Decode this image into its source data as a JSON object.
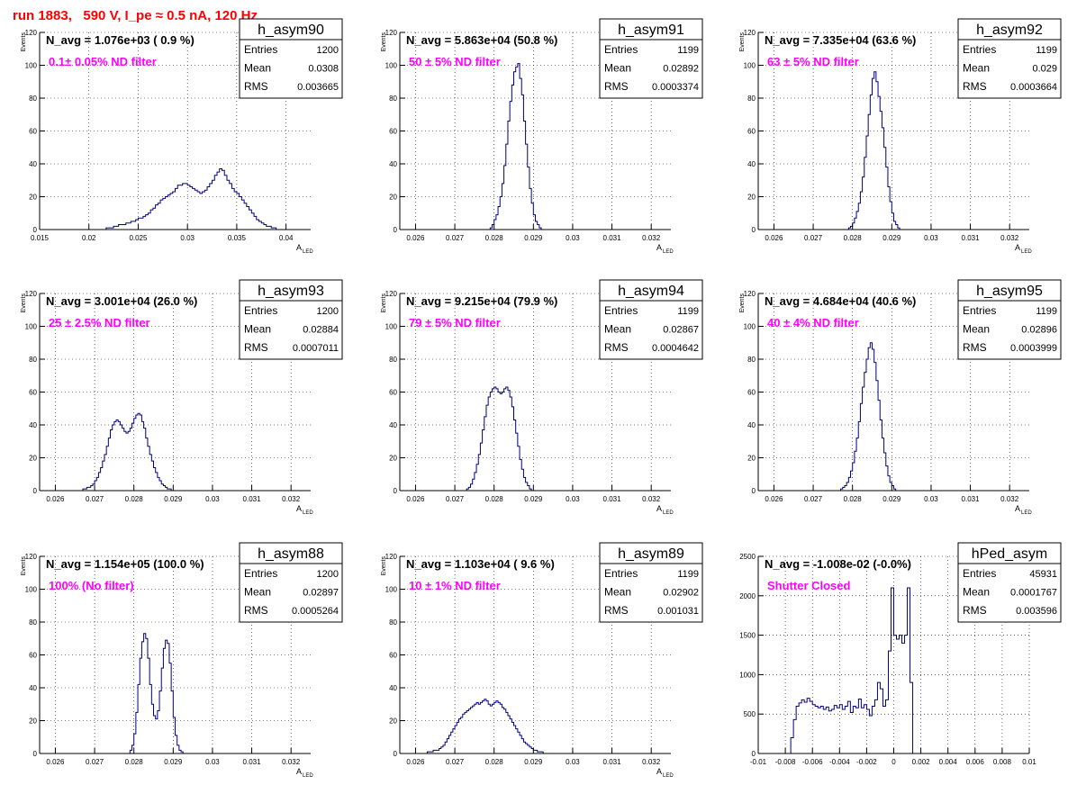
{
  "page_title": "run 1883,   590 V, I_pe ≈ 0.5 nA, 120 Hz",
  "colors": {
    "histogram": "#000080",
    "annotation": "#ff00ff",
    "title": "#ff0000",
    "grid": "#000000"
  },
  "stats_labels": {
    "entries": "Entries",
    "mean": "Mean",
    "rms": "RMS"
  },
  "chart_data": [
    {
      "type": "histogram",
      "name": "h_asym90",
      "avg_text": "N_avg = 1.076e+03 ( 0.9 %)",
      "filter_text": "0.1± 0.05% ND filter",
      "stats": {
        "entries": "1200",
        "mean": "0.0308",
        "rms": "0.003665"
      },
      "xlabel": "A",
      "xlabel_sub": "LED",
      "ylabel": "Events",
      "xlim": [
        0.015,
        0.0425
      ],
      "ylim": [
        0,
        120
      ],
      "grid": true,
      "xticks": [
        0.015,
        0.02,
        0.025,
        0.03,
        0.035,
        0.04
      ],
      "xtick_labels": [
        "0.015",
        "0.02",
        "0.025",
        "0.03",
        "0.035",
        "0.04"
      ],
      "yticks": [
        0,
        20,
        40,
        60,
        80,
        100,
        120
      ],
      "ytick_labels": [
        "0",
        "20",
        "40",
        "60",
        "80",
        "100",
        "120"
      ],
      "bin_start": 0.02,
      "bin_width": 0.00025,
      "values": [
        0,
        0,
        0,
        0,
        0,
        0,
        0,
        1,
        1,
        1,
        2,
        2,
        3,
        3,
        3,
        4,
        4,
        5,
        5,
        6,
        7,
        7,
        8,
        9,
        10,
        12,
        13,
        15,
        16,
        18,
        19,
        20,
        21,
        22,
        23,
        25,
        27,
        27,
        28,
        28,
        27,
        26,
        25,
        24,
        23,
        22,
        23,
        24,
        26,
        28,
        30,
        33,
        35,
        37,
        36,
        33,
        30,
        28,
        25,
        23,
        22,
        20,
        18,
        16,
        14,
        12,
        10,
        8,
        6,
        5,
        4,
        3,
        2,
        2,
        1,
        1,
        0,
        0,
        0,
        0,
        0,
        0
      ]
    },
    {
      "type": "histogram",
      "name": "h_asym91",
      "avg_text": "N_avg = 5.863e+04 (50.8 %)",
      "filter_text": "50 ± 5% ND filter",
      "stats": {
        "entries": "1199",
        "mean": "0.02892",
        "rms": "0.0003374"
      },
      "xlabel": "A",
      "xlabel_sub": "LED",
      "ylabel": "Events",
      "xlim": [
        0.0256,
        0.0325
      ],
      "ylim": [
        0,
        120
      ],
      "grid": true,
      "xticks": [
        0.026,
        0.027,
        0.028,
        0.029,
        0.03,
        0.031,
        0.032
      ],
      "xtick_labels": [
        "0.026",
        "0.027",
        "0.028",
        "0.029",
        "0.03",
        "0.031",
        "0.032"
      ],
      "yticks": [
        0,
        20,
        40,
        60,
        80,
        100,
        120
      ],
      "ytick_labels": [
        "0",
        "20",
        "40",
        "60",
        "80",
        "100",
        "120"
      ],
      "bin_start": 0.0279,
      "bin_width": 5e-05,
      "values": [
        1,
        3,
        6,
        9,
        14,
        20,
        28,
        39,
        52,
        66,
        78,
        88,
        96,
        99,
        101,
        92,
        82,
        66,
        52,
        38,
        25,
        16,
        9,
        5,
        3,
        1,
        0
      ]
    },
    {
      "type": "histogram",
      "name": "h_asym92",
      "avg_text": "N_avg = 7.335e+04 (63.6 %)",
      "filter_text": "63 ± 5% ND filter",
      "stats": {
        "entries": "1199",
        "mean": "0.029",
        "rms": "0.0003664"
      },
      "xlabel": "A",
      "xlabel_sub": "LED",
      "ylabel": "Events",
      "xlim": [
        0.0256,
        0.0325
      ],
      "ylim": [
        0,
        120
      ],
      "grid": true,
      "xticks": [
        0.026,
        0.027,
        0.028,
        0.029,
        0.03,
        0.031,
        0.032
      ],
      "xtick_labels": [
        "0.026",
        "0.027",
        "0.028",
        "0.029",
        "0.03",
        "0.031",
        "0.032"
      ],
      "yticks": [
        0,
        20,
        40,
        60,
        80,
        100,
        120
      ],
      "ytick_labels": [
        "0",
        "20",
        "40",
        "60",
        "80",
        "100",
        "120"
      ],
      "bin_start": 0.0279,
      "bin_width": 5e-05,
      "values": [
        1,
        2,
        4,
        7,
        11,
        16,
        23,
        32,
        44,
        57,
        70,
        82,
        92,
        96,
        90,
        81,
        72,
        62,
        50,
        38,
        26,
        17,
        10,
        5,
        3,
        1,
        0
      ]
    },
    {
      "type": "histogram",
      "name": "h_asym93",
      "avg_text": "N_avg = 3.001e+04 (26.0 %)",
      "filter_text": "25 ± 2.5% ND filter",
      "stats": {
        "entries": "1200",
        "mean": "0.02884",
        "rms": "0.0007011"
      },
      "xlabel": "A",
      "xlabel_sub": "LED",
      "ylabel": "Events",
      "xlim": [
        0.0256,
        0.0325
      ],
      "ylim": [
        0,
        120
      ],
      "grid": true,
      "xticks": [
        0.026,
        0.027,
        0.028,
        0.029,
        0.03,
        0.031,
        0.032
      ],
      "xtick_labels": [
        "0.026",
        "0.027",
        "0.028",
        "0.029",
        "0.03",
        "0.031",
        "0.032"
      ],
      "yticks": [
        0,
        20,
        40,
        60,
        80,
        100,
        120
      ],
      "ytick_labels": [
        "0",
        "20",
        "40",
        "60",
        "80",
        "100",
        "120"
      ],
      "bin_start": 0.0266,
      "bin_width": 5e-05,
      "values": [
        0,
        0,
        1,
        1,
        2,
        2,
        3,
        4,
        6,
        8,
        11,
        14,
        18,
        22,
        27,
        32,
        37,
        40,
        42,
        43,
        42,
        40,
        38,
        36,
        35,
        36,
        38,
        41,
        44,
        46,
        47,
        46,
        42,
        38,
        32,
        27,
        22,
        18,
        14,
        11,
        8,
        6,
        4,
        3,
        2,
        1,
        1,
        0
      ]
    },
    {
      "type": "histogram",
      "name": "h_asym94",
      "avg_text": "N_avg = 9.215e+04 (79.9 %)",
      "filter_text": "79 ± 5% ND filter",
      "stats": {
        "entries": "1199",
        "mean": "0.02867",
        "rms": "0.0004642"
      },
      "xlabel": "A",
      "xlabel_sub": "LED",
      "ylabel": "Events",
      "xlim": [
        0.0256,
        0.0325
      ],
      "ylim": [
        0,
        120
      ],
      "grid": true,
      "xticks": [
        0.026,
        0.027,
        0.028,
        0.029,
        0.03,
        0.031,
        0.032
      ],
      "xtick_labels": [
        "0.026",
        "0.027",
        "0.028",
        "0.029",
        "0.03",
        "0.031",
        "0.032"
      ],
      "yticks": [
        0,
        20,
        40,
        60,
        80,
        100,
        120
      ],
      "ytick_labels": [
        "0",
        "20",
        "40",
        "60",
        "80",
        "100",
        "120"
      ],
      "bin_start": 0.0273,
      "bin_width": 5e-05,
      "values": [
        1,
        2,
        4,
        7,
        11,
        16,
        22,
        29,
        37,
        45,
        52,
        57,
        60,
        62,
        63,
        62,
        60,
        59,
        60,
        62,
        63,
        61,
        57,
        51,
        43,
        35,
        27,
        19,
        13,
        8,
        5,
        3,
        1,
        0
      ]
    },
    {
      "type": "histogram",
      "name": "h_asym95",
      "avg_text": "N_avg = 4.684e+04 (40.6 %)",
      "filter_text": "40 ± 4% ND filter",
      "stats": {
        "entries": "1199",
        "mean": "0.02896",
        "rms": "0.0003999"
      },
      "xlabel": "A",
      "xlabel_sub": "LED",
      "ylabel": "Events",
      "xlim": [
        0.0256,
        0.0325
      ],
      "ylim": [
        0,
        120
      ],
      "grid": true,
      "xticks": [
        0.026,
        0.027,
        0.028,
        0.029,
        0.03,
        0.031,
        0.032
      ],
      "xtick_labels": [
        "0.026",
        "0.027",
        "0.028",
        "0.029",
        "0.03",
        "0.031",
        "0.032"
      ],
      "yticks": [
        0,
        20,
        40,
        60,
        80,
        100,
        120
      ],
      "ytick_labels": [
        "0",
        "20",
        "40",
        "60",
        "80",
        "100",
        "120"
      ],
      "bin_start": 0.0277,
      "bin_width": 5e-05,
      "values": [
        1,
        2,
        3,
        5,
        8,
        12,
        17,
        24,
        32,
        42,
        53,
        63,
        72,
        80,
        87,
        90,
        86,
        78,
        67,
        55,
        43,
        32,
        23,
        15,
        9,
        5,
        3,
        1,
        0
      ]
    },
    {
      "type": "histogram",
      "name": "h_asym88",
      "avg_text": "N_avg = 1.154e+05 (100.0 %)",
      "filter_text": "100% (No filter)",
      "stats": {
        "entries": "1200",
        "mean": "0.02897",
        "rms": "0.0005264"
      },
      "xlabel": "A",
      "xlabel_sub": "LED",
      "ylabel": "Events",
      "xlim": [
        0.0256,
        0.0325
      ],
      "ylim": [
        0,
        120
      ],
      "grid": true,
      "xticks": [
        0.026,
        0.027,
        0.028,
        0.029,
        0.03,
        0.031,
        0.032
      ],
      "xtick_labels": [
        "0.026",
        "0.027",
        "0.028",
        "0.029",
        "0.03",
        "0.031",
        "0.032"
      ],
      "yticks": [
        0,
        20,
        40,
        60,
        80,
        100,
        120
      ],
      "ytick_labels": [
        "0",
        "20",
        "40",
        "60",
        "80",
        "100",
        "120"
      ],
      "bin_start": 0.0279,
      "bin_width": 5e-05,
      "values": [
        2,
        5,
        12,
        25,
        42,
        58,
        68,
        73,
        70,
        58,
        42,
        30,
        23,
        21,
        26,
        38,
        52,
        64,
        69,
        67,
        55,
        38,
        22,
        11,
        5,
        2,
        1,
        0
      ]
    },
    {
      "type": "histogram",
      "name": "h_asym89",
      "avg_text": "N_avg = 1.103e+04 ( 9.6 %)",
      "filter_text": "10 ± 1% ND filter",
      "stats": {
        "entries": "1199",
        "mean": "0.02902",
        "rms": "0.001031"
      },
      "xlabel": "A",
      "xlabel_sub": "LED",
      "ylabel": "Events",
      "xlim": [
        0.0256,
        0.0325
      ],
      "ylim": [
        0,
        120
      ],
      "grid": true,
      "xticks": [
        0.026,
        0.027,
        0.028,
        0.029,
        0.03,
        0.031,
        0.032
      ],
      "xtick_labels": [
        "0.026",
        "0.027",
        "0.028",
        "0.029",
        "0.03",
        "0.031",
        "0.032"
      ],
      "yticks": [
        0,
        20,
        40,
        60,
        80,
        100,
        120
      ],
      "ytick_labels": [
        "0",
        "20",
        "40",
        "60",
        "80",
        "100",
        "120"
      ],
      "bin_start": 0.0263,
      "bin_width": 5e-05,
      "values": [
        1,
        1,
        1,
        2,
        2,
        2,
        3,
        4,
        5,
        7,
        9,
        11,
        13,
        15,
        17,
        19,
        21,
        22,
        24,
        25,
        26,
        27,
        28,
        29,
        30,
        31,
        30,
        31,
        32,
        33,
        32,
        30,
        29,
        30,
        31,
        32,
        31,
        30,
        28,
        27,
        25,
        23,
        21,
        19,
        17,
        15,
        13,
        11,
        9,
        7,
        6,
        5,
        4,
        3,
        2,
        2,
        1,
        1,
        1,
        0
      ]
    },
    {
      "type": "histogram",
      "name": "hPed_asym",
      "avg_text": "N_avg = -1.008e-02 (-0.0%)",
      "filter_text": "Shutter Closed",
      "stats": {
        "entries": "45931",
        "mean": "0.0001767",
        "rms": "0.003596"
      },
      "xlabel": "",
      "xlabel_sub": "",
      "ylabel": "",
      "xlim": [
        -0.01,
        0.01
      ],
      "ylim": [
        0,
        2500
      ],
      "grid": true,
      "xticks": [
        -0.01,
        -0.008,
        -0.006,
        -0.004,
        -0.002,
        0,
        0.002,
        0.004,
        0.006,
        0.008,
        0.01
      ],
      "xtick_labels": [
        "-0.01",
        "-0.008",
        "-0.006",
        "-0.004",
        "-0.002",
        "0",
        "0.002",
        "0.004",
        "0.006",
        "0.008",
        "0.01"
      ],
      "yticks": [
        0,
        500,
        1000,
        1500,
        2000,
        2500
      ],
      "ytick_labels": [
        "0",
        "500",
        "1000",
        "1500",
        "2000",
        "2500"
      ],
      "bin_start": -0.0076,
      "bin_width": 0.0002,
      "values": [
        200,
        430,
        600,
        640,
        680,
        650,
        700,
        660,
        620,
        600,
        580,
        600,
        560,
        590,
        540,
        560,
        610,
        580,
        620,
        560,
        600,
        660,
        520,
        600,
        580,
        690,
        580,
        620,
        560,
        480,
        600,
        680,
        900,
        820,
        600,
        680,
        1300,
        2100,
        1500,
        1450,
        1500,
        1400,
        1500,
        2100,
        900,
        0
      ]
    }
  ]
}
